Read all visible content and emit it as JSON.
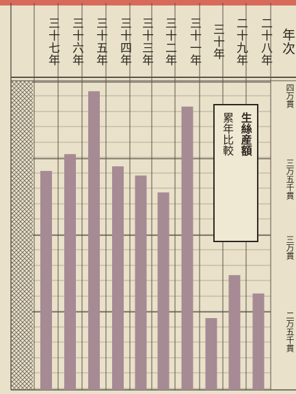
{
  "header": {
    "row_label": "年次",
    "years": [
      "三十七年",
      "三十六年",
      "三十五年",
      "三十四年",
      "三十三年",
      "三十二年",
      "三十一年",
      "三十年",
      "二十九年",
      "二十八年"
    ]
  },
  "title": {
    "columns": [
      "生絲産額",
      "累年比較"
    ]
  },
  "axis_labels": [
    "四万貫",
    "三万五千貫",
    "三万貫",
    "二万五千貫"
  ],
  "colors": {
    "bar": "#a68a94",
    "top_strip": "#d96a5a",
    "grid": "#5a5248",
    "paper": "#e9e1c9",
    "ink": "#2b2620"
  },
  "chart_data": {
    "type": "bar",
    "title": "生絲産額累年比較",
    "categories": [
      "三十七年",
      "三十六年",
      "三十五年",
      "三十四年",
      "三十三年",
      "三十二年",
      "三十一年",
      "三十年",
      "二十九年",
      "二十八年"
    ],
    "values": [
      34200,
      35300,
      39400,
      34500,
      33900,
      32800,
      38400,
      24600,
      27400,
      26200
    ],
    "unit": "貫",
    "ylim": [
      24000,
      41000
    ],
    "ticks": [
      "四万貫",
      "三万五千貫",
      "三万貫",
      "二万五千貫"
    ],
    "grid": true,
    "legend": "none"
  }
}
